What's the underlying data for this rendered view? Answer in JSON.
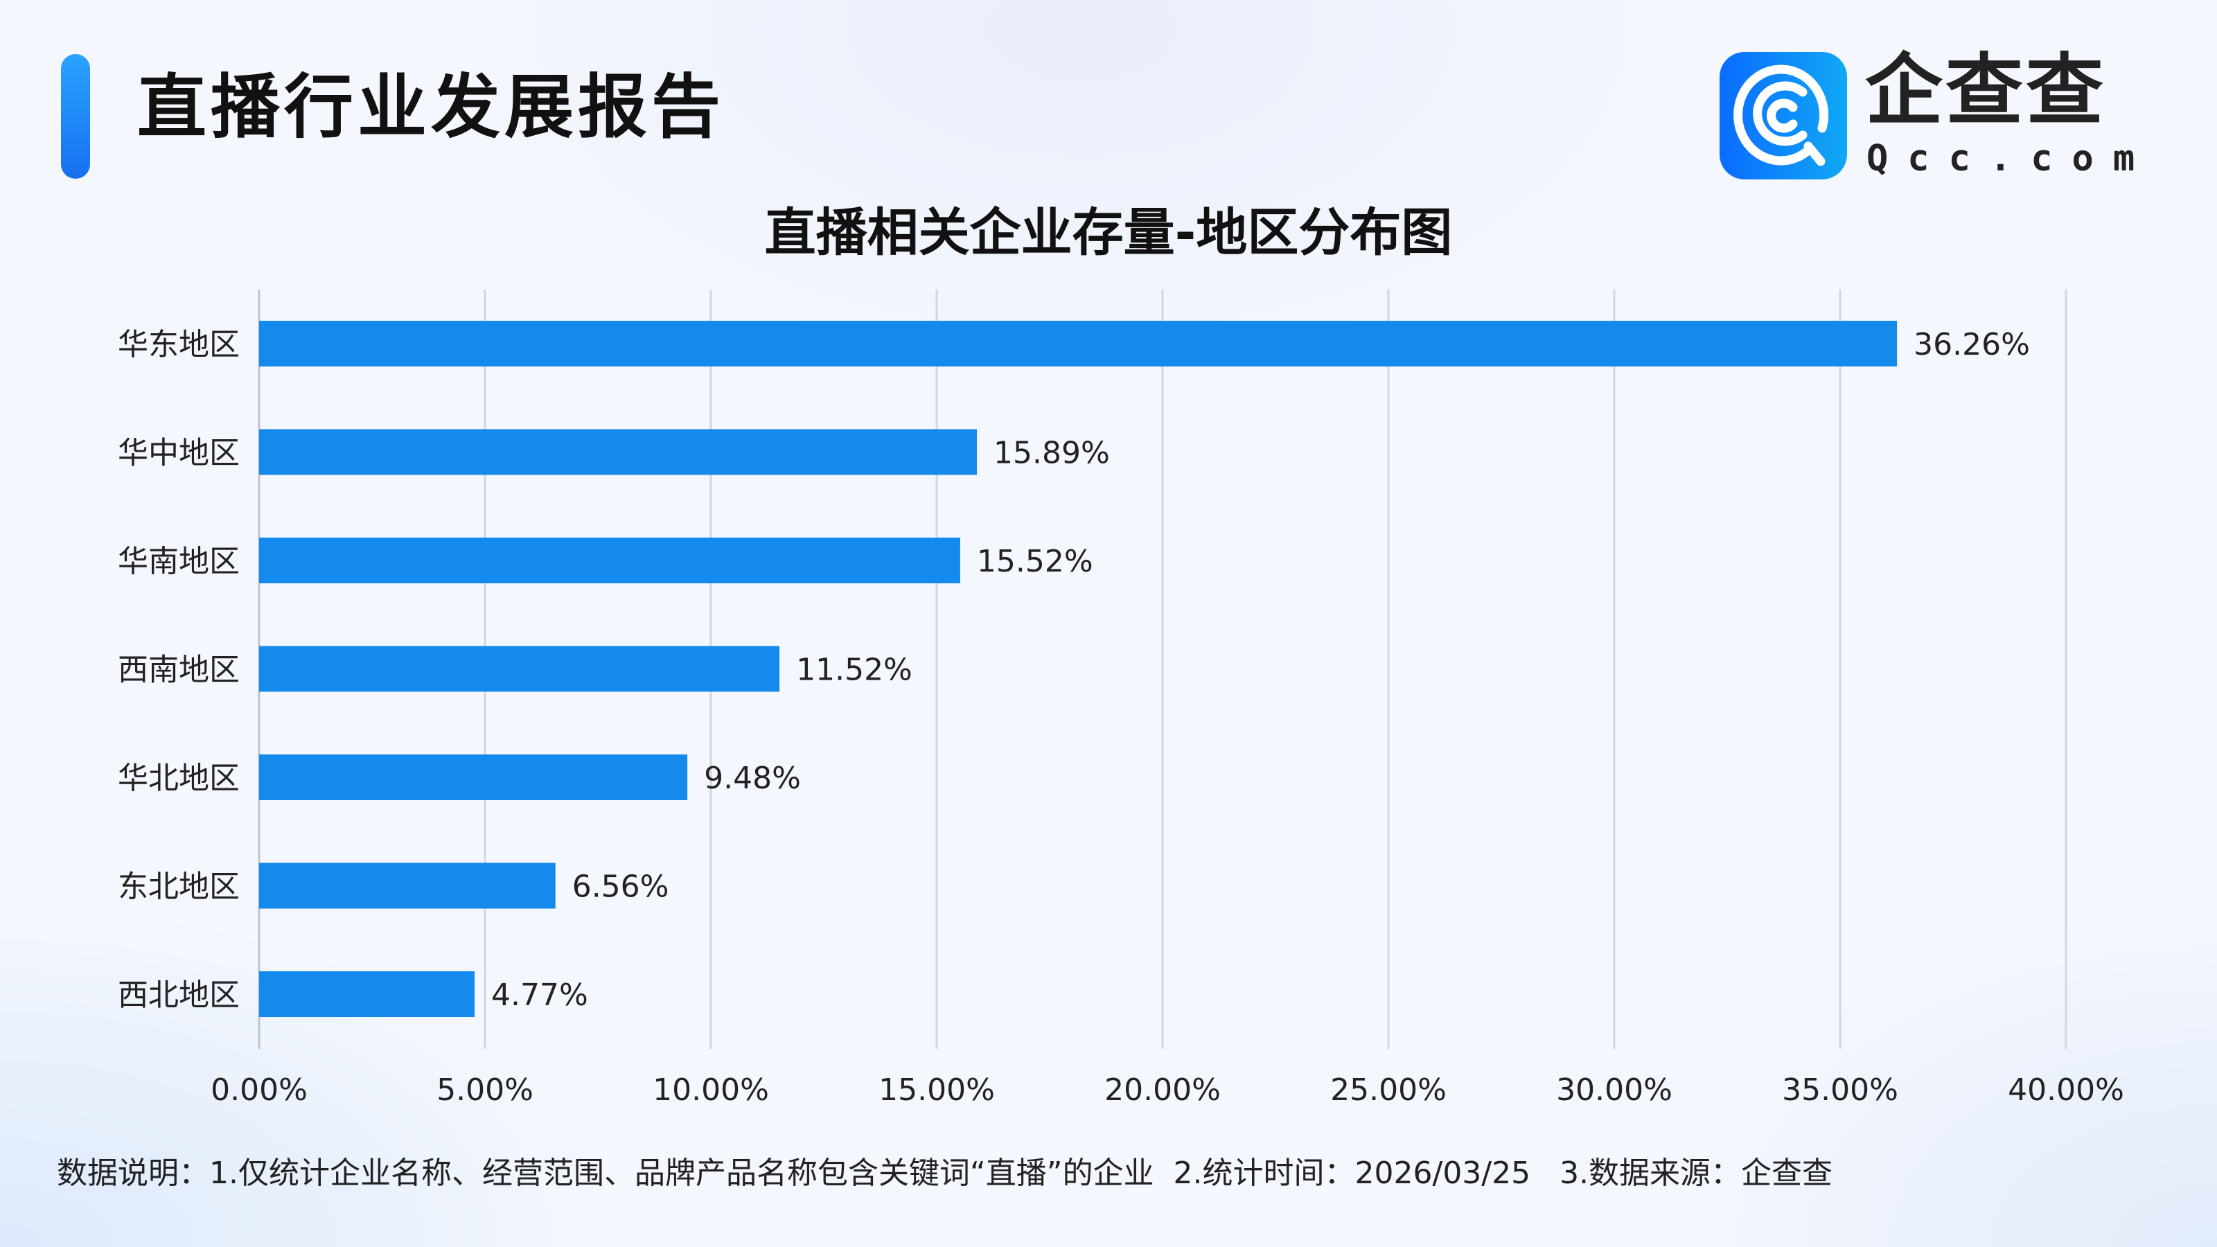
{
  "header": {
    "title": "直播行业发展报告"
  },
  "logo": {
    "cn": "企查查",
    "en": "Qcc.com",
    "color": "#0f84fa"
  },
  "chart_data": {
    "type": "bar",
    "orientation": "horizontal",
    "title": "直播相关企业存量-地区分布图",
    "categories": [
      "华东地区",
      "华中地区",
      "华南地区",
      "西南地区",
      "华北地区",
      "东北地区",
      "西北地区"
    ],
    "values": [
      36.26,
      15.89,
      15.52,
      11.52,
      9.48,
      6.56,
      4.77
    ],
    "data_labels": [
      "36.26%",
      "15.89%",
      "15.52%",
      "11.52%",
      "9.48%",
      "6.56%",
      "4.77%"
    ],
    "xlim": [
      0,
      40
    ],
    "x_ticks": [
      "0.00%",
      "5.00%",
      "10.00%",
      "15.00%",
      "20.00%",
      "25.00%",
      "30.00%",
      "35.00%",
      "40.00%"
    ],
    "grid": "vertical",
    "bar_color": "#148bec",
    "xlabel": "",
    "ylabel": ""
  },
  "footer": {
    "note": "数据说明：1.仅统计企业名称、经营范围、品牌产品名称包含关键词“直播”的企业  2.统计时间：2026/03/25   3.数据来源：企查查"
  }
}
